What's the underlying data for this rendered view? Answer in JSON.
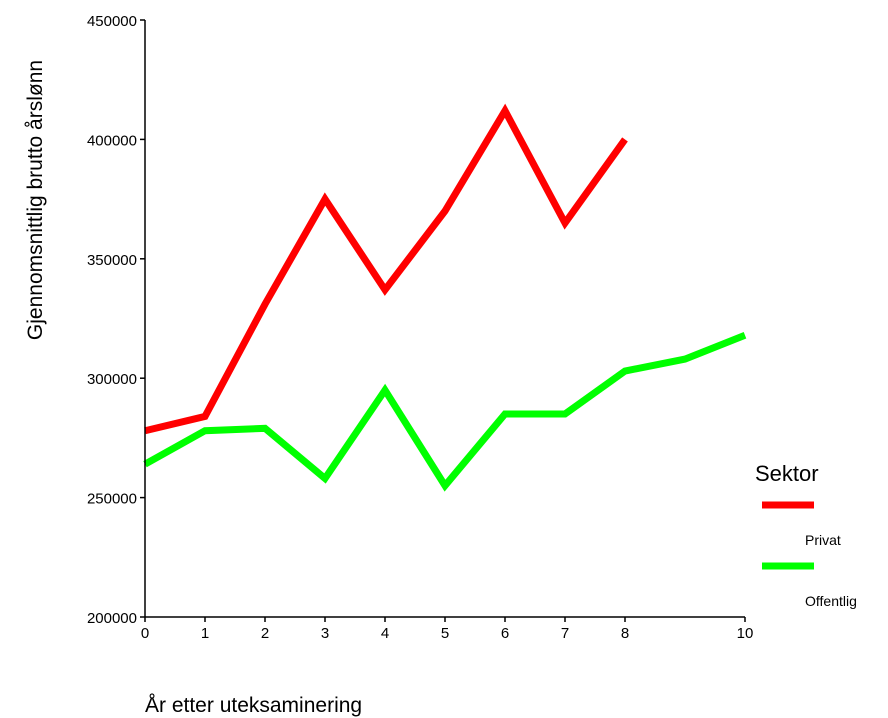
{
  "chart_data": {
    "type": "line",
    "xlabel": "År etter uteksaminering",
    "ylabel": "Gjennomsnittlig brutto årslønn",
    "xlim": [
      0,
      10
    ],
    "ylim": [
      200000,
      450000
    ],
    "x_ticks": [
      0,
      1,
      2,
      3,
      4,
      5,
      6,
      7,
      8,
      10
    ],
    "y_ticks": [
      200000,
      250000,
      300000,
      350000,
      400000,
      450000
    ],
    "x_tick_labels": [
      "0",
      "1",
      "2",
      "3",
      "4",
      "5",
      "6",
      "7",
      "8",
      "10"
    ],
    "y_tick_labels": [
      "200000",
      "250000",
      "300000",
      "350000",
      "400000",
      "450000"
    ],
    "grid": false,
    "legend": {
      "title": "Sektor",
      "placement": "right"
    },
    "series": [
      {
        "name": "Privat",
        "color": "#ff0000",
        "x": [
          0,
          1,
          2,
          3,
          4,
          5,
          6,
          7,
          8
        ],
        "y": [
          278000,
          284000,
          331000,
          375000,
          337000,
          370000,
          412000,
          365000,
          400000
        ]
      },
      {
        "name": "Offentlig",
        "color": "#00ff00",
        "x": [
          0,
          1,
          2,
          3,
          4,
          5,
          6,
          7,
          8,
          9,
          10
        ],
        "y": [
          264000,
          278000,
          279000,
          258000,
          295000,
          255000,
          285000,
          285000,
          303000,
          308000,
          318000
        ]
      }
    ]
  }
}
